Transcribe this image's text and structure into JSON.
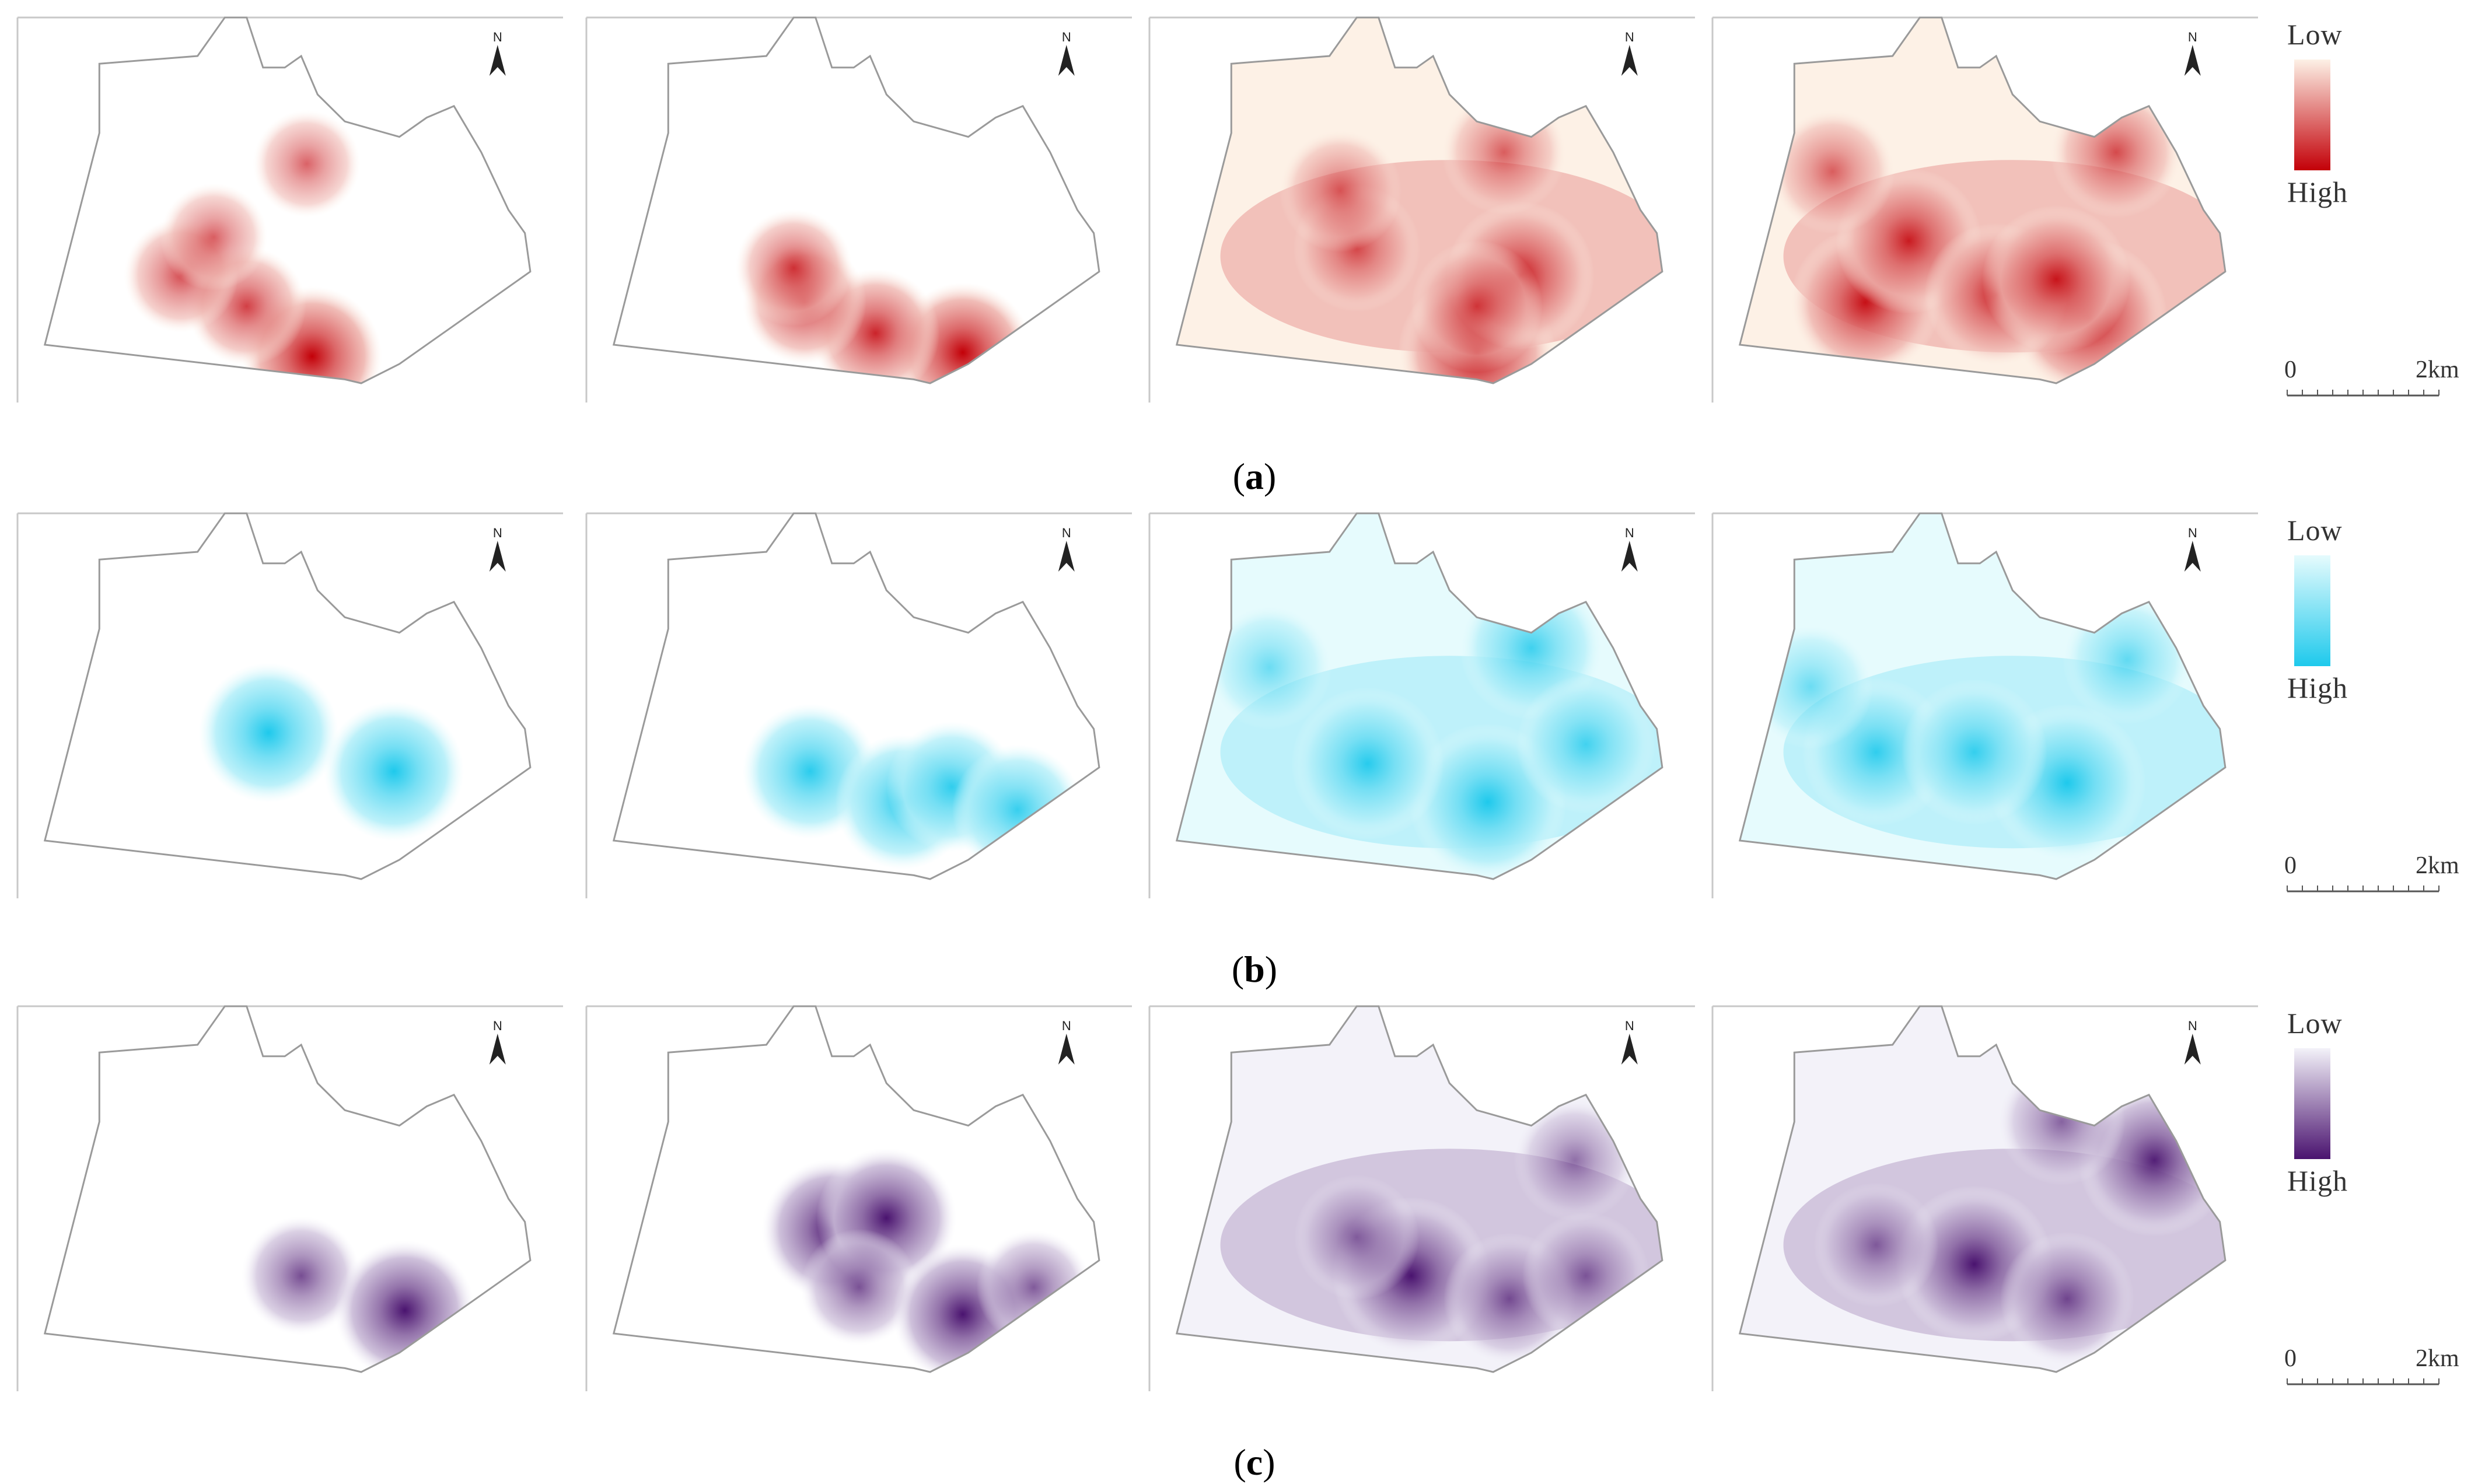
{
  "rows": [
    {
      "caption_letter": "a",
      "color_low": "#fdf1e6",
      "color_high": "#c30008",
      "legend": {
        "low": "Low",
        "high": "High"
      },
      "scale": {
        "start": "0",
        "end": "2km"
      },
      "maps": [
        {
          "coverage": "spots",
          "hotspots": [
            [
              0.54,
              0.88,
              1.0
            ],
            [
              0.42,
              0.75,
              0.55
            ],
            [
              0.3,
              0.67,
              0.45
            ],
            [
              0.53,
              0.38,
              0.3
            ],
            [
              0.36,
              0.57,
              0.3
            ]
          ]
        },
        {
          "coverage": "spots",
          "hotspots": [
            [
              0.69,
              0.87,
              1.0
            ],
            [
              0.53,
              0.82,
              0.75
            ],
            [
              0.4,
              0.74,
              0.65
            ],
            [
              0.38,
              0.65,
              0.5
            ]
          ]
        },
        {
          "coverage": "full",
          "hotspots": [
            [
              0.6,
              0.87,
              1.0
            ],
            [
              0.68,
              0.67,
              0.8
            ],
            [
              0.6,
              0.75,
              0.45
            ],
            [
              0.38,
              0.6,
              0.35
            ],
            [
              0.35,
              0.45,
              0.25
            ],
            [
              0.65,
              0.35,
              0.3
            ]
          ]
        },
        {
          "coverage": "full",
          "hotspots": [
            [
              0.69,
              0.78,
              1.0
            ],
            [
              0.28,
              0.74,
              0.85
            ],
            [
              0.36,
              0.58,
              0.75
            ],
            [
              0.52,
              0.72,
              0.7
            ],
            [
              0.63,
              0.68,
              0.8
            ],
            [
              0.74,
              0.35,
              0.45
            ],
            [
              0.22,
              0.4,
              0.3
            ]
          ]
        }
      ]
    },
    {
      "caption_letter": "b",
      "color_low": "#e6fbfd",
      "color_high": "#1ec9ec",
      "legend": {
        "low": "Low",
        "high": "High"
      },
      "scale": {
        "start": "0",
        "end": "2km"
      },
      "maps": [
        {
          "coverage": "spots",
          "hotspots": [
            [
              0.46,
              0.57,
              1.0
            ],
            [
              0.69,
              0.67,
              1.0
            ]
          ]
        },
        {
          "coverage": "spots",
          "hotspots": [
            [
              0.41,
              0.67,
              0.9
            ],
            [
              0.58,
              0.75,
              0.9
            ],
            [
              0.67,
              0.71,
              0.8
            ],
            [
              0.79,
              0.77,
              0.8
            ]
          ]
        },
        {
          "coverage": "full",
          "hotspots": [
            [
              0.62,
              0.75,
              1.0
            ],
            [
              0.4,
              0.65,
              0.9
            ],
            [
              0.7,
              0.35,
              0.7
            ],
            [
              0.8,
              0.6,
              0.6
            ],
            [
              0.22,
              0.4,
              0.3
            ]
          ]
        },
        {
          "coverage": "full",
          "hotspots": [
            [
              0.65,
              0.7,
              1.0
            ],
            [
              0.3,
              0.62,
              0.8
            ],
            [
              0.48,
              0.62,
              0.75
            ],
            [
              0.18,
              0.45,
              0.3
            ],
            [
              0.76,
              0.38,
              0.4
            ]
          ]
        }
      ]
    },
    {
      "caption_letter": "c",
      "color_low": "#f3f2f9",
      "color_high": "#4a136f",
      "legend": {
        "low": "Low",
        "high": "High"
      },
      "scale": {
        "start": "0",
        "end": "2km"
      },
      "maps": [
        {
          "coverage": "spots",
          "hotspots": [
            [
              0.52,
              0.7,
              0.55
            ],
            [
              0.71,
              0.79,
              1.0
            ]
          ]
        },
        {
          "coverage": "spots",
          "hotspots": [
            [
              0.45,
              0.58,
              1.0
            ],
            [
              0.55,
              0.55,
              1.0
            ],
            [
              0.5,
              0.73,
              0.5
            ],
            [
              0.69,
              0.8,
              1.0
            ],
            [
              0.82,
              0.73,
              0.45
            ]
          ]
        },
        {
          "coverage": "full",
          "hotspots": [
            [
              0.48,
              0.7,
              1.0
            ],
            [
              0.66,
              0.76,
              0.45
            ],
            [
              0.8,
              0.7,
              0.35
            ],
            [
              0.38,
              0.6,
              0.3
            ],
            [
              0.78,
              0.4,
              0.25
            ]
          ]
        },
        {
          "coverage": "full",
          "hotspots": [
            [
              0.48,
              0.67,
              1.0
            ],
            [
              0.81,
              0.4,
              0.9
            ],
            [
              0.65,
              0.76,
              0.5
            ],
            [
              0.64,
              0.3,
              0.35
            ],
            [
              0.3,
              0.62,
              0.3
            ]
          ]
        }
      ]
    }
  ]
}
